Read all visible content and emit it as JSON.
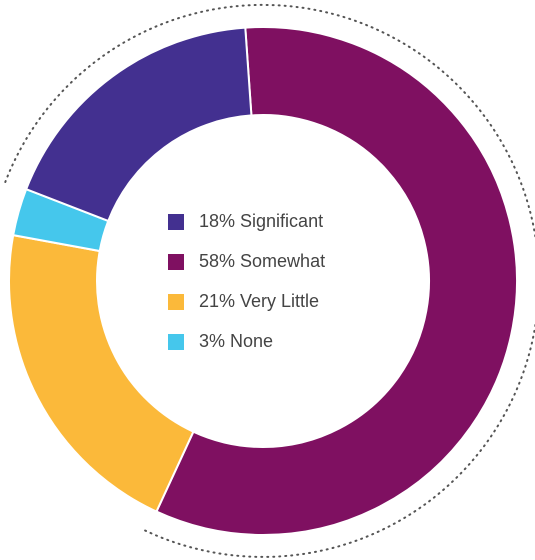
{
  "chart_data": {
    "type": "donut",
    "categories": [
      "Significant",
      "Somewhat",
      "Very Little",
      "None"
    ],
    "values": [
      18,
      58,
      21,
      3
    ],
    "value_labels": [
      "18%",
      "58%",
      "21%",
      "3%"
    ],
    "colors": [
      "#433090",
      "#7f1061",
      "#fbb93a",
      "#45c7ec"
    ]
  }
}
